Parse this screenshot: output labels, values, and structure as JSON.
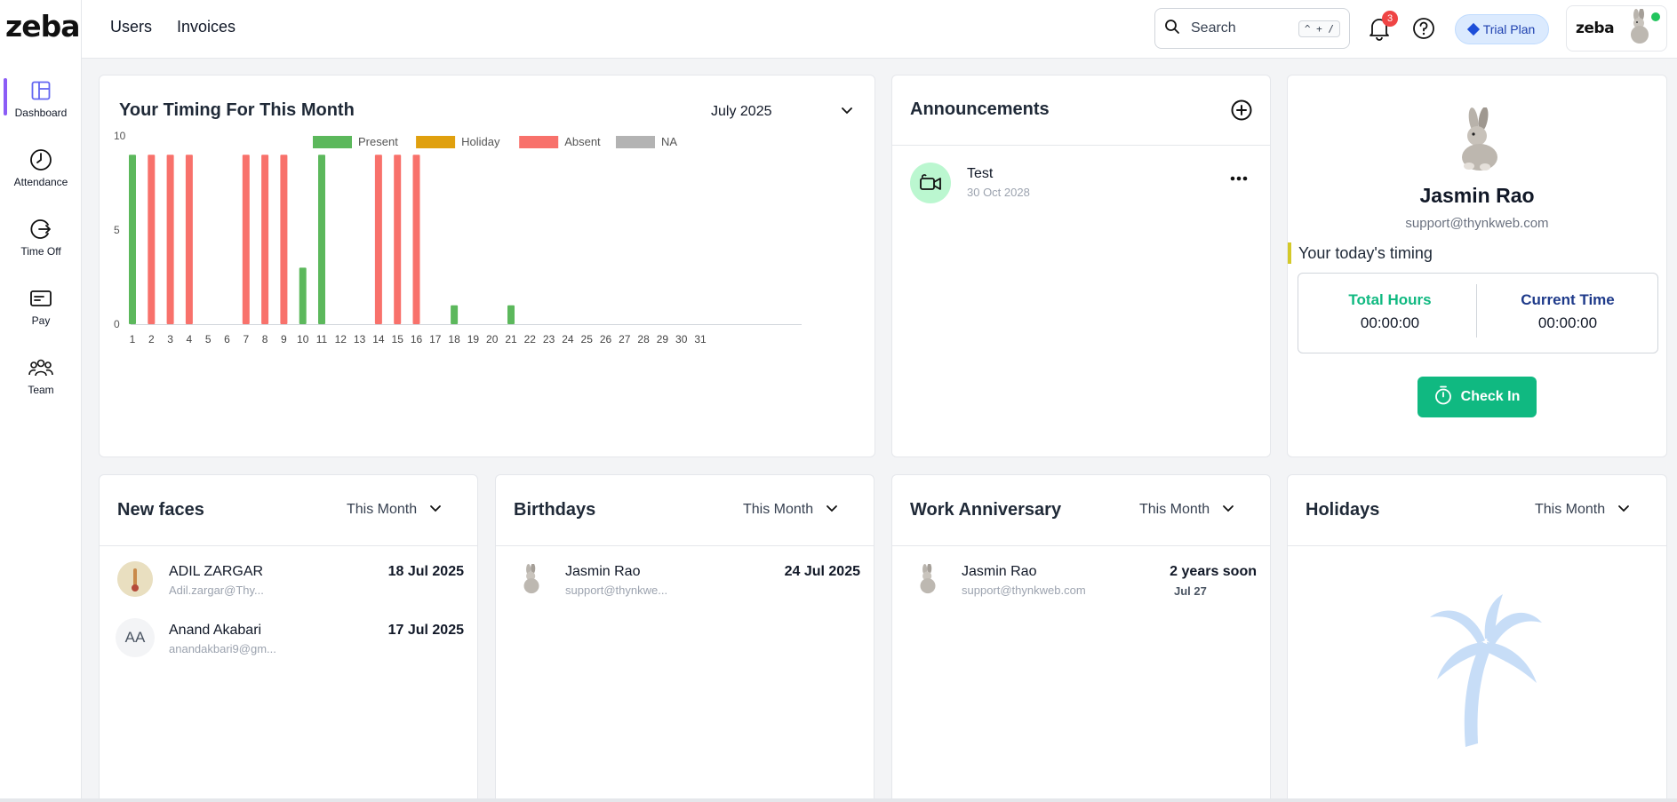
{
  "brand": {
    "logo_text": "zeba",
    "mini_logo_text": "zeba"
  },
  "sidebar": {
    "items": [
      {
        "label": "Dashboard",
        "icon": "dashboard-icon",
        "active": true
      },
      {
        "label": "Attendance",
        "icon": "clock-icon",
        "active": false
      },
      {
        "label": "Time Off",
        "icon": "time-off-icon",
        "active": false
      },
      {
        "label": "Pay",
        "icon": "wallet-icon",
        "active": false
      },
      {
        "label": "Team",
        "icon": "team-icon",
        "active": false
      }
    ]
  },
  "topbar": {
    "nav": [
      "Users",
      "Invoices"
    ],
    "search": {
      "label": "Search",
      "shortcut": "^ + /"
    },
    "notifications_count": "3",
    "trial_label": "Trial Plan"
  },
  "timing": {
    "title": "Your Timing For This Month",
    "month": "July 2025"
  },
  "chart_data": {
    "type": "bar",
    "title": "",
    "xlabel": "",
    "ylabel": "",
    "ylim": [
      0,
      10
    ],
    "yticks": [
      0,
      5,
      10
    ],
    "legend": [
      {
        "name": "Present",
        "color": "#5cb85c"
      },
      {
        "name": "Holiday",
        "color": "#e0a00e"
      },
      {
        "name": "Absent",
        "color": "#f8716b"
      },
      {
        "name": "NA",
        "color": "#b3b3b3"
      }
    ],
    "legend_position": "top-center",
    "categories": [
      "1",
      "2",
      "3",
      "4",
      "5",
      "6",
      "7",
      "8",
      "9",
      "10",
      "11",
      "12",
      "13",
      "14",
      "15",
      "16",
      "17",
      "18",
      "19",
      "20",
      "21",
      "22",
      "23",
      "24",
      "25",
      "26",
      "27",
      "28",
      "29",
      "30",
      "31"
    ],
    "series": [
      {
        "name": "Present",
        "values": [
          9,
          0,
          0,
          0,
          0,
          0,
          0,
          0,
          0,
          3,
          9,
          0,
          0,
          0,
          0,
          0,
          0,
          1,
          0,
          0,
          1,
          0,
          0,
          0,
          0,
          0,
          0,
          0,
          0,
          0,
          0
        ]
      },
      {
        "name": "Absent",
        "values": [
          0,
          9,
          9,
          9,
          0,
          0,
          9,
          9,
          9,
          0,
          0,
          0,
          0,
          9,
          9,
          9,
          0,
          0,
          0,
          0,
          0,
          0,
          0,
          0,
          0,
          0,
          0,
          0,
          0,
          0,
          0
        ]
      }
    ]
  },
  "announcements": {
    "title": "Announcements",
    "items": [
      {
        "title": "Test",
        "date": "30 Oct 2028"
      }
    ]
  },
  "profile": {
    "name": "Jasmin Rao",
    "email": "support@thynkweb.com",
    "today_label": "Your today's timing",
    "total_hours_label": "Total Hours",
    "total_hours": "00:00:00",
    "current_time_label": "Current Time",
    "current_time": "00:00:00",
    "checkin_label": "Check In"
  },
  "new_faces": {
    "title": "New faces",
    "filter": "This Month",
    "items": [
      {
        "name": "ADIL ZARGAR",
        "email": "Adil.zargar@Thy...",
        "date": "18 Jul 2025"
      },
      {
        "name": "Anand Akabari",
        "email": "anandakbari9@gm...",
        "date": "17 Jul 2025",
        "initials": "AA"
      }
    ]
  },
  "birthdays": {
    "title": "Birthdays",
    "filter": "This Month",
    "items": [
      {
        "name": "Jasmin Rao",
        "email": "support@thynkwe...",
        "date": "24 Jul 2025"
      }
    ]
  },
  "anniversary": {
    "title": "Work Anniversary",
    "filter": "This Month",
    "items": [
      {
        "name": "Jasmin Rao",
        "email": "support@thynkweb.com",
        "note": "2 years soon",
        "date": "Jul 27"
      }
    ]
  },
  "holidays": {
    "title": "Holidays",
    "filter": "This Month"
  }
}
